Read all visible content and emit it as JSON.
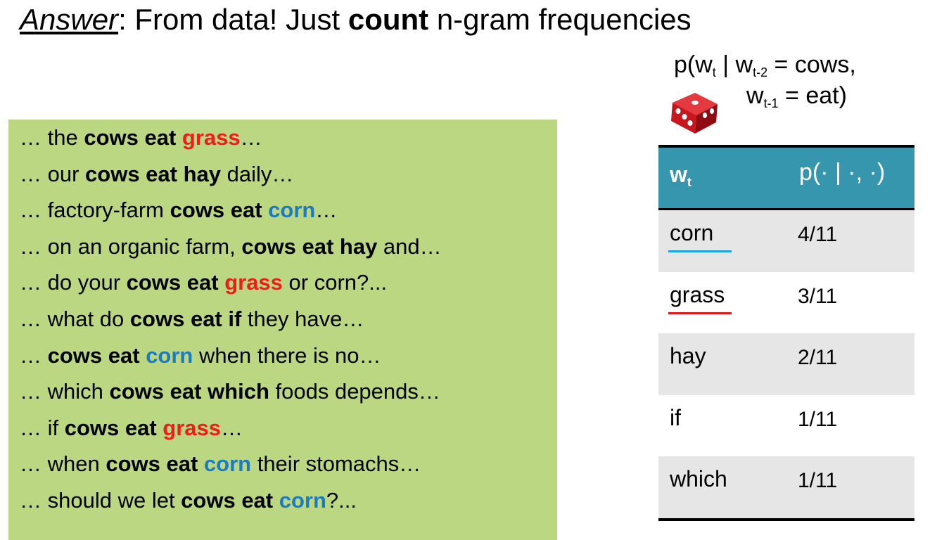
{
  "title": {
    "answer": "Answer",
    "colon_text": ": From data! Just ",
    "count": "count",
    "rest": " n-gram frequencies"
  },
  "formula": {
    "p_open": "p(w",
    "sub_t": "t",
    "bar_w": " | w",
    "sub_t2": "t-2",
    "eq_cows": " = cows,",
    "w": "w",
    "sub_t1": "t-1",
    "eq_eat": " = eat)"
  },
  "die": {
    "icon": "red-die-icon",
    "color": "#c8161d"
  },
  "corpus": {
    "lines": [
      [
        {
          "t": "… the ",
          "s": "n"
        },
        {
          "t": "cows eat ",
          "s": "b"
        },
        {
          "t": "grass",
          "s": "r"
        },
        {
          "t": "…",
          "s": "n"
        }
      ],
      [
        {
          "t": "… our ",
          "s": "n"
        },
        {
          "t": "cows eat hay",
          "s": "b"
        },
        {
          "t": " daily…",
          "s": "n"
        }
      ],
      [
        {
          "t": "… factory-farm ",
          "s": "n"
        },
        {
          "t": "cows eat ",
          "s": "b"
        },
        {
          "t": "corn",
          "s": "u"
        },
        {
          "t": "…",
          "s": "n"
        }
      ],
      [
        {
          "t": "… on an organic farm, ",
          "s": "n"
        },
        {
          "t": "cows eat hay",
          "s": "b"
        },
        {
          "t": " and…",
          "s": "n"
        }
      ],
      [
        {
          "t": "… do your ",
          "s": "n"
        },
        {
          "t": "cows eat ",
          "s": "b"
        },
        {
          "t": "grass",
          "s": "r"
        },
        {
          "t": " or corn?...",
          "s": "n"
        }
      ],
      [
        {
          "t": "… what do ",
          "s": "n"
        },
        {
          "t": "cows eat if",
          "s": "b"
        },
        {
          "t": " they have…",
          "s": "n"
        }
      ],
      [
        {
          "t": "… ",
          "s": "n"
        },
        {
          "t": "cows eat ",
          "s": "b"
        },
        {
          "t": "corn",
          "s": "u"
        },
        {
          "t": " when there is no…",
          "s": "n"
        }
      ],
      [
        {
          "t": "… which ",
          "s": "n"
        },
        {
          "t": "cows eat which",
          "s": "b"
        },
        {
          "t": " foods depends…",
          "s": "n"
        }
      ],
      [
        {
          "t": "… if ",
          "s": "n"
        },
        {
          "t": "cows eat ",
          "s": "b"
        },
        {
          "t": "grass",
          "s": "r"
        },
        {
          "t": "…",
          "s": "n"
        }
      ],
      [
        {
          "t": "… when ",
          "s": "n"
        },
        {
          "t": "cows eat ",
          "s": "b"
        },
        {
          "t": "corn",
          "s": "u"
        },
        {
          "t": " their stomachs…",
          "s": "n"
        }
      ],
      [
        {
          "t": "… should we let ",
          "s": "n"
        },
        {
          "t": "cows eat ",
          "s": "b"
        },
        {
          "t": "corn",
          "s": "u"
        },
        {
          "t": "?...",
          "s": "n"
        }
      ]
    ],
    "colors": {
      "red": "#ef1c1c",
      "blue": "#1d7bbf",
      "background": "#bcd782"
    }
  },
  "table": {
    "header_word": "w",
    "header_word_sub": "t",
    "header_prob": "p(· | ·, ·)",
    "header_color": "#3596ad",
    "rows": [
      {
        "word": "corn",
        "prob": "4/11",
        "underline": "#1aa3e3"
      },
      {
        "word": "grass",
        "prob": "3/11",
        "underline": "#e01b1b"
      },
      {
        "word": "hay",
        "prob": "2/11"
      },
      {
        "word": "if",
        "prob": "1/11"
      },
      {
        "word": "which",
        "prob": "1/11"
      }
    ]
  }
}
